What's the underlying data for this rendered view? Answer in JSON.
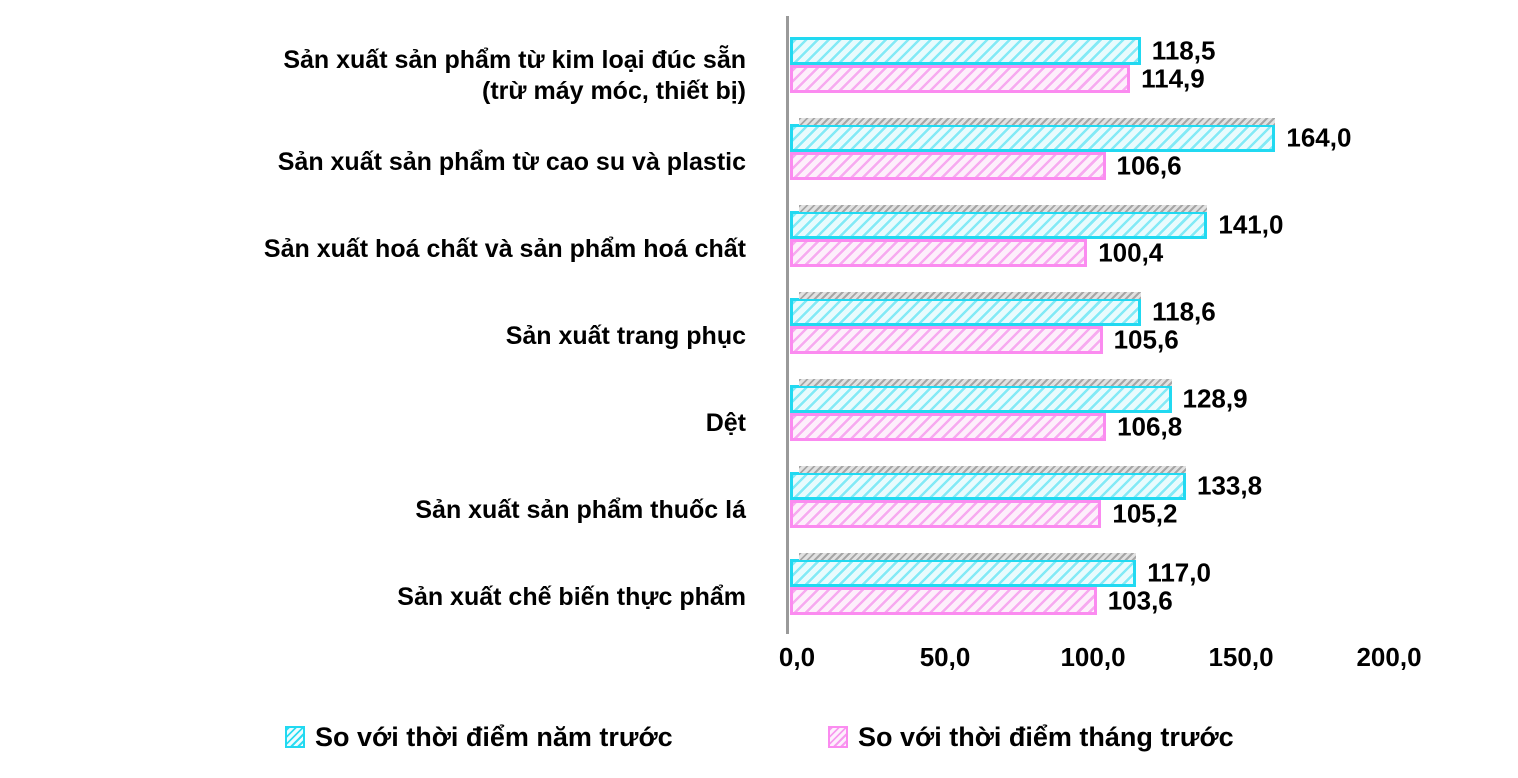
{
  "chart_data": {
    "type": "bar",
    "orientation": "horizontal",
    "title": "",
    "categories": [
      "Sản xuất sản phẩm từ kim loại đúc sẵn\n(trừ máy móc, thiết bị)",
      "Sản xuất sản phẩm từ cao su và plastic",
      "Sản xuất hoá chất và sản phẩm hoá chất",
      "Sản xuất trang phục",
      "Dệt",
      "Sản xuất sản phẩm thuốc lá",
      "Sản xuất chế biến thực phẩm"
    ],
    "series": [
      {
        "name": "So với thời điểm năm trước",
        "color": "#21d9f1",
        "values": [
          118.5,
          164.0,
          141.0,
          118.6,
          128.9,
          133.8,
          117.0
        ],
        "labels": [
          "118,5",
          "164,0",
          "141,0",
          "118,6",
          "128,9",
          "133,8",
          "117,0"
        ]
      },
      {
        "name": "So với thời điểm tháng trước",
        "color": "#fb8bf0",
        "values": [
          114.9,
          106.6,
          100.4,
          105.6,
          106.8,
          105.2,
          103.6
        ],
        "labels": [
          "114,9",
          "106,6",
          "100,4",
          "105,6",
          "106,8",
          "105,2",
          "103,6"
        ]
      }
    ],
    "xlim": [
      0,
      200
    ],
    "x_ticks": [
      {
        "value": 0,
        "label": "0,0"
      },
      {
        "value": 50,
        "label": "50,0"
      },
      {
        "value": 100,
        "label": "100,0"
      },
      {
        "value": 150,
        "label": "150,0"
      },
      {
        "value": 200,
        "label": "200,0"
      }
    ],
    "grid": false,
    "legend_position": "bottom"
  }
}
